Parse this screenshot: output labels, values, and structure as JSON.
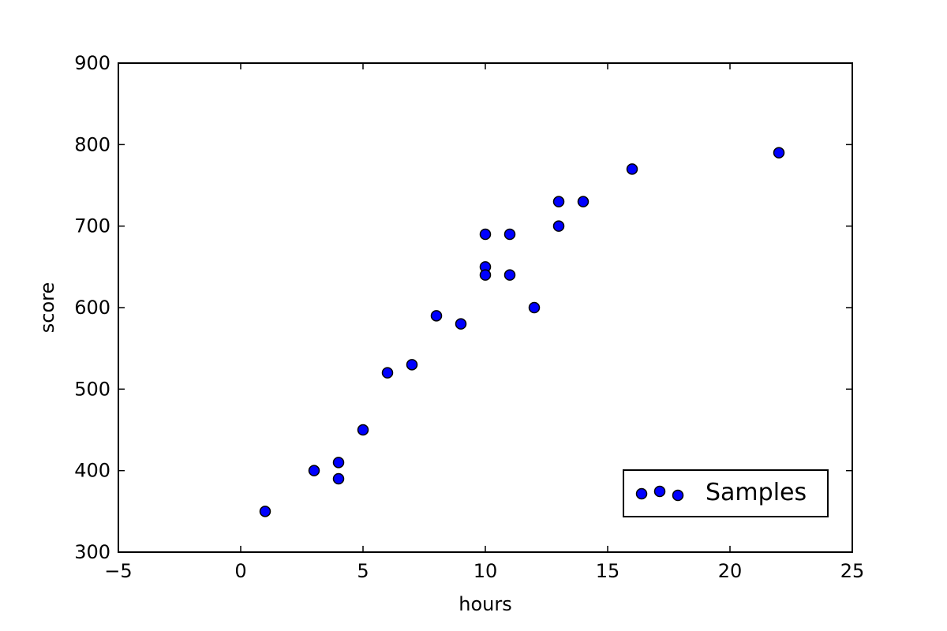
{
  "chart_data": {
    "type": "scatter",
    "title": "",
    "xlabel": "hours",
    "ylabel": "score",
    "xlim": [
      -5,
      25
    ],
    "ylim": [
      300,
      900
    ],
    "xticks": [
      -5,
      0,
      5,
      10,
      15,
      20,
      25
    ],
    "yticks": [
      300,
      400,
      500,
      600,
      700,
      800,
      900
    ],
    "xtick_labels": [
      "−5",
      "0",
      "5",
      "10",
      "15",
      "20",
      "25"
    ],
    "ytick_labels": [
      "300",
      "400",
      "500",
      "600",
      "700",
      "800",
      "900"
    ],
    "grid": false,
    "legend_position": "bottom-right",
    "series": [
      {
        "name": "Samples",
        "color": "#0000ff",
        "edgecolor": "#000000",
        "points": [
          [
            1,
            350
          ],
          [
            3,
            400
          ],
          [
            4,
            410
          ],
          [
            4,
            390
          ],
          [
            5,
            450
          ],
          [
            6,
            520
          ],
          [
            7,
            530
          ],
          [
            8,
            590
          ],
          [
            9,
            580
          ],
          [
            10,
            690
          ],
          [
            10,
            650
          ],
          [
            10,
            640
          ],
          [
            11,
            690
          ],
          [
            11,
            640
          ],
          [
            12,
            600
          ],
          [
            13,
            730
          ],
          [
            13,
            700
          ],
          [
            14,
            730
          ],
          [
            16,
            770
          ],
          [
            22,
            790
          ]
        ]
      }
    ]
  }
}
